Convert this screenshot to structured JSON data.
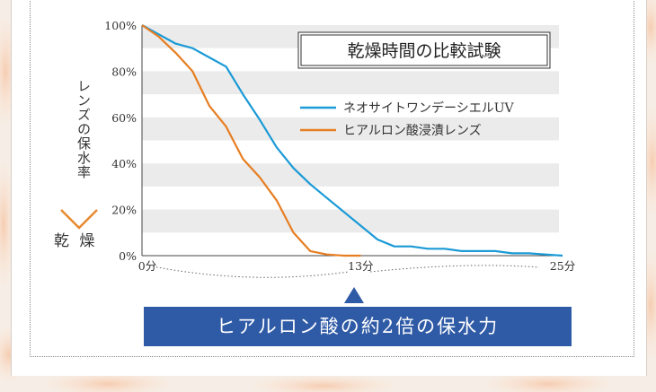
{
  "chart_data": {
    "type": "line",
    "title": "乾燥時間の比較試験",
    "ylabel": "レンズの保水率",
    "ylabel_bottom": "乾 燥",
    "y_ticks": [
      "100%",
      "80%",
      "60%",
      "40%",
      "20%",
      "0%"
    ],
    "ylim": [
      0,
      100
    ],
    "xlim": [
      0,
      25
    ],
    "x_ticks": [
      {
        "label": "0分",
        "value": 0
      },
      {
        "label": "13分",
        "value": 13
      },
      {
        "label": "25分",
        "value": 25
      }
    ],
    "grid": "alternating horizontal bands",
    "legend_position": "top-right",
    "series": [
      {
        "name": "ネオサイトワンデーシエルUV",
        "color": "#1a9ad6",
        "x": [
          0,
          1,
          2,
          3,
          4,
          5,
          6,
          7,
          8,
          9,
          10,
          11,
          12,
          13,
          14,
          15,
          16,
          17,
          18,
          19,
          20,
          21,
          22,
          23,
          24,
          25
        ],
        "y": [
          100,
          96,
          92,
          90,
          86,
          82,
          70,
          59,
          47,
          38,
          31,
          25,
          19,
          13,
          7,
          4,
          4,
          3,
          3,
          2,
          2,
          2,
          1,
          1,
          0.5,
          0
        ]
      },
      {
        "name": "ヒアルロン酸浸漬レンズ",
        "color": "#e67e22",
        "x": [
          0,
          1,
          2,
          3,
          4,
          5,
          6,
          7,
          8,
          9,
          10,
          11,
          12,
          13
        ],
        "y": [
          100,
          95,
          88,
          80,
          65,
          56,
          42,
          34,
          24,
          10,
          2,
          0.5,
          0,
          0
        ]
      }
    ]
  },
  "banner": {
    "text": "ヒアルロン酸の約2倍の保水力"
  }
}
